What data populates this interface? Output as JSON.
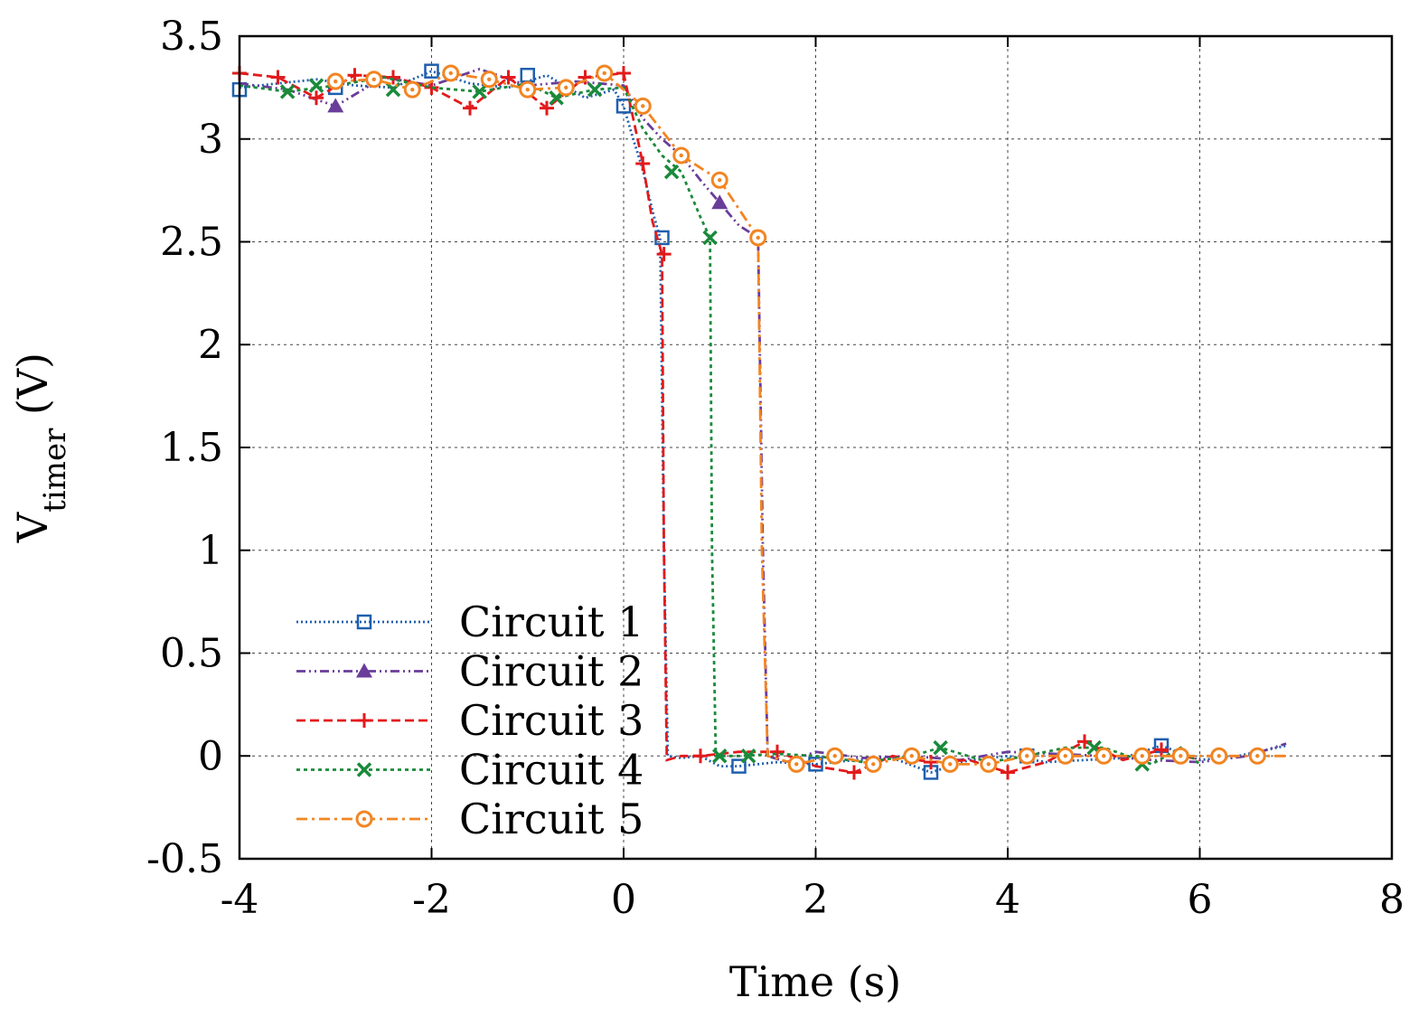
{
  "chart_data": {
    "type": "line",
    "title": "",
    "xlabel": "Time (s)",
    "ylabel_main": "V",
    "ylabel_sub": "timer",
    "ylabel_unit": " (V)",
    "xlim": [
      -4,
      8
    ],
    "ylim": [
      -0.5,
      3.5
    ],
    "x_ticks": [
      -4,
      -2,
      0,
      2,
      4,
      6,
      8
    ],
    "x_tick_labels": [
      "-4",
      "-2",
      "0",
      "2",
      "4",
      "6",
      "8"
    ],
    "y_ticks": [
      -0.5,
      0,
      0.5,
      1,
      1.5,
      2,
      2.5,
      3,
      3.5
    ],
    "y_tick_labels": [
      "-0.5",
      "0",
      "0.5",
      "1",
      "1.5",
      "2",
      "2.5",
      "3",
      "3.5"
    ],
    "grid": true,
    "legend_position": "bottom-left",
    "series": [
      {
        "name": "Circuit 1",
        "color": "#1f5fae",
        "dash": "dotted",
        "marker": "square",
        "x": [
          -4,
          -3.6,
          -3.2,
          -2.8,
          -2.4,
          -2.0,
          -1.6,
          -1.2,
          -0.8,
          -0.4,
          -0.1,
          0.0,
          0.1,
          0.2,
          0.3,
          0.38,
          0.42,
          0.46,
          0.6,
          0.8,
          1.0,
          1.2,
          1.6,
          2.0,
          2.4,
          2.8,
          3.2,
          3.6,
          4.0,
          4.4,
          4.8,
          5.2,
          5.6,
          6.0,
          6.4,
          6.9
        ],
        "y": [
          3.25,
          3.27,
          3.29,
          3.26,
          3.25,
          3.33,
          3.27,
          3.25,
          3.31,
          3.2,
          3.24,
          3.16,
          3.0,
          2.85,
          2.65,
          2.52,
          1.0,
          0.0,
          -0.01,
          0.0,
          -0.05,
          -0.05,
          -0.03,
          -0.04,
          -0.02,
          -0.01,
          -0.08,
          -0.02,
          0.0,
          -0.03,
          -0.02,
          -0.01,
          0.05,
          -0.02,
          0.0,
          0.05
        ],
        "markers_x": [
          -4.0,
          -3.0,
          -2.0,
          -1.0,
          0.0,
          0.4,
          1.2,
          2.0,
          3.2,
          4.2,
          5.6
        ],
        "markers_y": [
          3.24,
          3.25,
          3.33,
          3.31,
          3.16,
          2.52,
          -0.05,
          -0.04,
          -0.08,
          0.0,
          0.05
        ]
      },
      {
        "name": "Circuit 2",
        "color": "#6a3d9a",
        "dash": "dashdotdot",
        "marker": "triangle",
        "x": [
          -4,
          -3.5,
          -3.0,
          -2.5,
          -2.0,
          -1.5,
          -1.0,
          -0.5,
          0.0,
          0.2,
          0.4,
          0.6,
          0.8,
          1.0,
          1.2,
          1.4,
          1.45,
          1.5,
          1.7,
          2.0,
          2.5,
          3.0,
          3.5,
          4.0,
          4.5,
          5.0,
          5.5,
          6.0,
          6.5,
          6.9
        ],
        "y": [
          3.27,
          3.24,
          3.16,
          3.3,
          3.26,
          3.34,
          3.26,
          3.28,
          3.26,
          3.1,
          3.0,
          2.92,
          2.8,
          2.69,
          2.58,
          2.52,
          1.0,
          0.0,
          -0.03,
          0.02,
          -0.01,
          0.0,
          -0.02,
          0.02,
          0.01,
          0.0,
          -0.02,
          -0.03,
          0.0,
          0.06
        ],
        "markers_x": [
          -3.0,
          1.0
        ],
        "markers_y": [
          3.16,
          2.69
        ]
      },
      {
        "name": "Circuit 3",
        "color": "#e31a1c",
        "dash": "dashed",
        "marker": "plus",
        "x": [
          -4,
          -3.6,
          -3.2,
          -2.8,
          -2.4,
          -2.0,
          -1.6,
          -1.2,
          -0.8,
          -0.4,
          0.0,
          0.1,
          0.2,
          0.3,
          0.4,
          0.42,
          0.45,
          0.6,
          0.8,
          1.2,
          1.6,
          2.0,
          2.4,
          2.8,
          3.2,
          3.6,
          4.0,
          4.4,
          4.8,
          5.2,
          5.6,
          6.0
        ],
        "y": [
          3.32,
          3.3,
          3.2,
          3.31,
          3.3,
          3.25,
          3.15,
          3.3,
          3.15,
          3.3,
          3.32,
          3.1,
          2.88,
          2.6,
          2.44,
          1.0,
          -0.02,
          0.0,
          0.0,
          0.02,
          0.02,
          -0.05,
          -0.08,
          0.0,
          -0.03,
          -0.02,
          -0.08,
          -0.03,
          0.07,
          -0.02,
          0.03,
          -0.02
        ],
        "markers_x": [
          -4.0,
          -3.6,
          -3.2,
          -2.8,
          -2.4,
          -2.0,
          -1.6,
          -1.2,
          -0.8,
          -0.4,
          0.0,
          0.2,
          0.42,
          0.8,
          1.6,
          2.4,
          3.2,
          4.0,
          4.8,
          5.6
        ],
        "markers_y": [
          3.32,
          3.3,
          3.2,
          3.31,
          3.3,
          3.25,
          3.15,
          3.3,
          3.15,
          3.3,
          3.32,
          2.88,
          2.44,
          0.0,
          0.02,
          -0.08,
          -0.03,
          -0.08,
          0.07,
          0.03
        ]
      },
      {
        "name": "Circuit 4",
        "color": "#1a8a3a",
        "dash": "dotted-coarse",
        "marker": "cross",
        "x": [
          -4,
          -3.5,
          -3.0,
          -2.5,
          -2.0,
          -1.5,
          -1.0,
          -0.7,
          -0.3,
          0.0,
          0.2,
          0.4,
          0.6,
          0.8,
          0.9,
          0.92,
          0.96,
          1.2,
          1.6,
          2.0,
          2.5,
          3.0,
          3.3,
          3.8,
          4.2,
          4.6,
          5.0,
          5.5,
          5.8,
          6.0
        ],
        "y": [
          3.26,
          3.23,
          3.26,
          3.3,
          3.25,
          3.23,
          3.27,
          3.2,
          3.24,
          3.25,
          3.05,
          2.92,
          2.84,
          2.62,
          2.52,
          1.0,
          0.0,
          0.0,
          0.01,
          0.0,
          -0.03,
          0.0,
          0.04,
          -0.03,
          0.0,
          0.04,
          0.04,
          -0.04,
          0.04,
          -0.04
        ],
        "markers_x": [
          -3.5,
          -3.2,
          -2.4,
          -1.5,
          -0.7,
          -0.3,
          0.5,
          0.9,
          1.0,
          1.3,
          3.3,
          4.9,
          5.4
        ],
        "markers_y": [
          3.23,
          3.26,
          3.24,
          3.23,
          3.2,
          3.24,
          2.84,
          2.52,
          0.0,
          0.0,
          0.04,
          0.04,
          -0.04
        ]
      },
      {
        "name": "Circuit 5",
        "color": "#f28522",
        "dash": "dashdot",
        "marker": "circle",
        "x": [
          -3.0,
          -2.6,
          -2.2,
          -1.8,
          -1.4,
          -1.0,
          -0.6,
          -0.2,
          0.2,
          0.6,
          1.0,
          1.4,
          1.44,
          1.5,
          1.8,
          2.2,
          2.6,
          3.0,
          3.4,
          3.8,
          4.2,
          4.6,
          5.0,
          5.4,
          5.8,
          6.2,
          6.6,
          6.9
        ],
        "y": [
          3.28,
          3.29,
          3.24,
          3.32,
          3.29,
          3.24,
          3.25,
          3.32,
          3.16,
          2.92,
          2.8,
          2.52,
          1.0,
          0.0,
          -0.04,
          0.0,
          -0.04,
          0.0,
          -0.04,
          -0.04,
          0.0,
          0.0,
          0.0,
          0.0,
          0.0,
          0.0,
          0.0,
          0.0
        ],
        "markers_x": [
          -3.0,
          -2.6,
          -2.2,
          -1.8,
          -1.4,
          -1.0,
          -0.6,
          -0.2,
          0.2,
          0.6,
          1.0,
          1.4,
          1.8,
          2.2,
          2.6,
          3.0,
          3.4,
          3.8,
          4.2,
          4.6,
          5.0,
          5.4,
          5.8,
          6.2,
          6.6
        ],
        "markers_y": [
          3.28,
          3.29,
          3.24,
          3.32,
          3.29,
          3.24,
          3.25,
          3.32,
          3.16,
          2.92,
          2.8,
          2.52,
          -0.04,
          0.0,
          -0.04,
          0.0,
          -0.04,
          -0.04,
          0.0,
          0.0,
          0.0,
          0.0,
          0.0,
          0.0,
          0.0
        ]
      }
    ]
  }
}
